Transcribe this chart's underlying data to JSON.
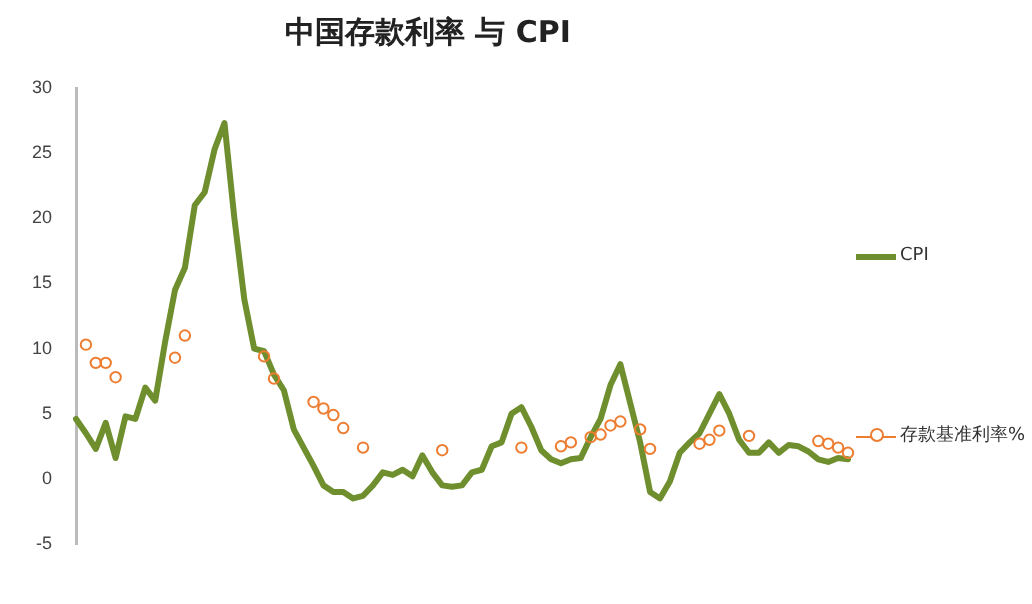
{
  "chart_data": {
    "type": "line",
    "title": "中国存款利率 与 CPI",
    "categories": [
      null,
      null,
      null,
      null,
      null,
      null,
      null,
      null,
      null,
      null,
      null,
      null,
      null,
      null,
      null,
      null,
      null,
      null,
      null,
      null,
      null,
      null,
      null,
      null,
      null,
      null,
      null,
      null,
      null,
      null,
      null,
      null,
      null,
      null,
      null,
      null,
      null,
      null,
      null,
      null,
      null,
      null,
      null,
      null,
      null,
      null,
      null,
      null,
      null,
      null,
      null,
      null,
      null,
      null,
      null,
      null,
      null,
      null,
      null,
      null,
      null,
      null,
      null,
      null,
      null,
      null,
      null,
      null,
      null,
      null,
      null,
      null,
      null,
      null,
      null,
      null,
      null,
      null,
      null
    ],
    "series": [
      {
        "name": "CPI",
        "color": "#6f8f2e",
        "marker": "none",
        "values": [
          4.6,
          3.5,
          2.3,
          4.3,
          1.6,
          4.8,
          4.6,
          7,
          6,
          10.5,
          14.5,
          16.2,
          21,
          22,
          25.3,
          27.3,
          20,
          13.8,
          10,
          9.8,
          8,
          6.8,
          3.8,
          2.4,
          1,
          -0.5,
          -1,
          -1,
          -1.5,
          -1.3,
          -0.5,
          0.5,
          0.3,
          0.7,
          0.2,
          1.8,
          0.5,
          -0.5,
          -0.6,
          -0.5,
          0.5,
          0.7,
          2.5,
          2.8,
          5,
          5.5,
          4,
          2.2,
          1.5,
          1.2,
          1.5,
          1.6,
          3.2,
          4.6,
          7.2,
          8.8,
          5.8,
          2.8,
          -1,
          -1.5,
          -0.2,
          2,
          2.8,
          3.5,
          5,
          6.5,
          5,
          3,
          2,
          2,
          2.8,
          2,
          2.6,
          2.5,
          2.1,
          1.5,
          1.3,
          1.6,
          1.5
        ]
      },
      {
        "name": "存款基准利率%",
        "type": "scatter",
        "color": "#ed7d31",
        "marker": "circle",
        "values": [
          null,
          10.3,
          8.9,
          8.9,
          7.8,
          null,
          null,
          null,
          null,
          null,
          9.3,
          11,
          null,
          null,
          null,
          null,
          null,
          null,
          null,
          9.4,
          7.7,
          null,
          null,
          null,
          5.9,
          5.4,
          4.9,
          3.9,
          null,
          2.4,
          null,
          null,
          null,
          null,
          null,
          null,
          null,
          2.2,
          null,
          null,
          null,
          null,
          null,
          null,
          null,
          2.4,
          null,
          null,
          null,
          2.5,
          2.8,
          null,
          3.2,
          3.4,
          4.1,
          4.4,
          null,
          3.8,
          2.3,
          null,
          null,
          null,
          null,
          2.7,
          3,
          3.7,
          null,
          null,
          3.3,
          null,
          null,
          null,
          null,
          null,
          null,
          2.9,
          2.7,
          2.4,
          2
        ]
      }
    ],
    "ylim": [
      -5,
      30
    ],
    "yticks": [
      -5,
      0,
      5,
      10,
      15,
      20,
      25,
      30
    ],
    "grid": false,
    "legend": "right",
    "tick_labels": "y"
  }
}
